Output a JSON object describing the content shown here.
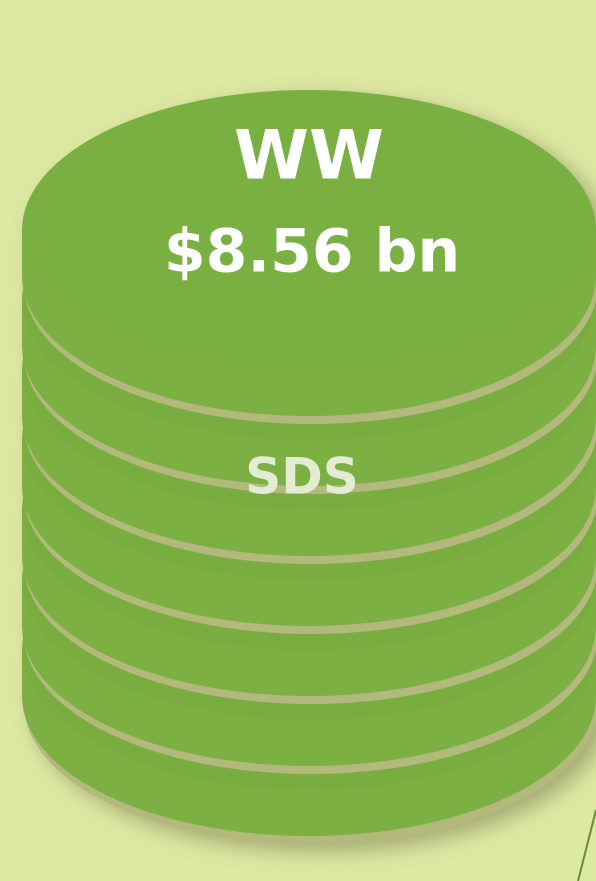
{
  "top_label": {
    "line1": "WW",
    "line2": "$8.56 bn"
  },
  "side_label": "SDS"
}
